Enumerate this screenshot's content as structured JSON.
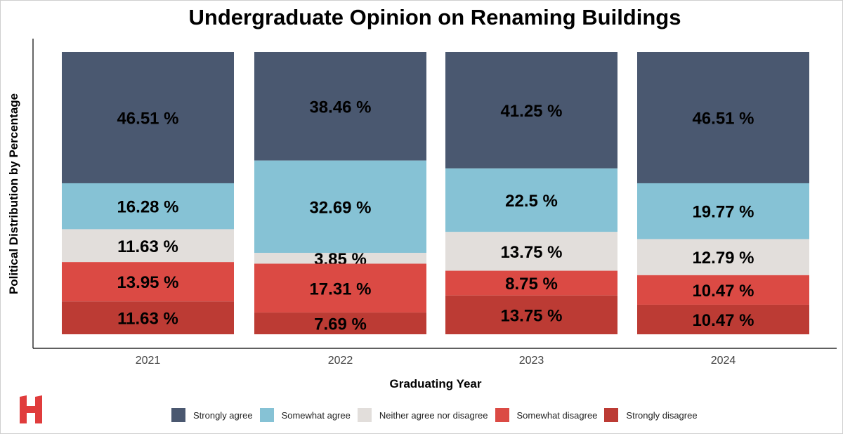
{
  "chart_data": {
    "type": "bar",
    "stacked": true,
    "normalized": true,
    "title": "Undergraduate Opinion on Renaming Buildings",
    "xlabel": "Graduating Year",
    "ylabel": "Political Distribution by Percentage",
    "categories": [
      "2021",
      "2022",
      "2023",
      "2024"
    ],
    "ylim": [
      0,
      100
    ],
    "grid": false,
    "legend_position": "bottom",
    "label_suffix": " %",
    "series": [
      {
        "name": "Strongly agree",
        "color": "#4a5870",
        "values": [
          46.51,
          38.46,
          41.25,
          46.51
        ]
      },
      {
        "name": "Somewhat agree",
        "color": "#86c2d5",
        "values": [
          16.28,
          32.69,
          22.5,
          19.77
        ]
      },
      {
        "name": "Neither agree nor disagree",
        "color": "#e2dedb",
        "values": [
          11.63,
          3.85,
          13.75,
          12.79
        ]
      },
      {
        "name": "Somewhat disagree",
        "color": "#db4a44",
        "values": [
          13.95,
          17.31,
          8.75,
          10.47
        ]
      },
      {
        "name": "Strongly disagree",
        "color": "#bc3b34",
        "values": [
          11.63,
          7.69,
          13.75,
          10.47
        ]
      }
    ]
  },
  "logo": {
    "letter": "H",
    "color": "#e03c3c"
  }
}
